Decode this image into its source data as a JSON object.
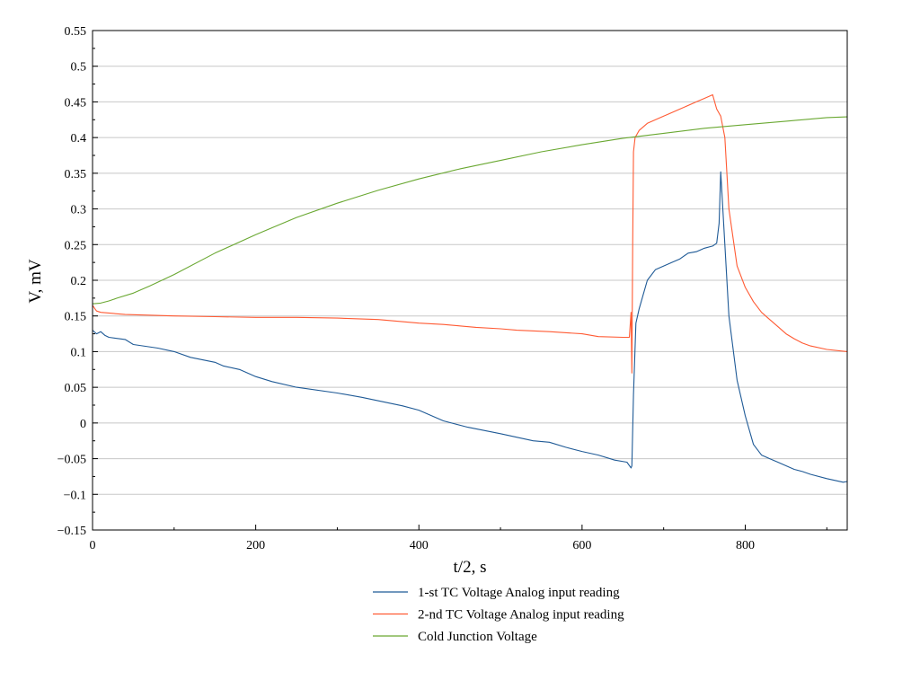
{
  "chart_data": {
    "type": "line",
    "title": "",
    "xlabel": "t/2, s",
    "ylabel": "V, mV",
    "xlim": [
      0,
      925
    ],
    "ylim": [
      -0.15,
      0.55
    ],
    "grid": true,
    "legend_position": "bottom-center",
    "x_ticks": [
      0,
      200,
      400,
      600,
      800
    ],
    "x_tick_labels": [
      "0",
      "200",
      "400",
      "600",
      "800"
    ],
    "y_ticks": [
      -0.15,
      -0.1,
      -0.05,
      0,
      0.05,
      0.1,
      0.15,
      0.2,
      0.25,
      0.3,
      0.35,
      0.4,
      0.45,
      0.5,
      0.55
    ],
    "y_tick_labels": [
      "−0.15",
      "−0.1",
      "−0.05",
      "0",
      "0.05",
      "0.1",
      "0.15",
      "0.2",
      "0.25",
      "0.3",
      "0.35",
      "0.4",
      "0.45",
      "0.5",
      "0.55"
    ],
    "series": [
      {
        "name": "1-st TC Voltage Analog input reading",
        "color": "#1f5a96",
        "x": [
          0,
          5,
          10,
          15,
          20,
          40,
          50,
          80,
          100,
          120,
          150,
          160,
          180,
          200,
          220,
          250,
          300,
          330,
          380,
          400,
          430,
          460,
          500,
          540,
          560,
          580,
          600,
          620,
          640,
          655,
          660,
          661,
          663,
          666,
          670,
          680,
          690,
          700,
          710,
          720,
          730,
          740,
          750,
          760,
          765,
          768,
          770,
          775,
          780,
          790,
          800,
          810,
          820,
          830,
          840,
          850,
          860,
          870,
          880,
          900,
          920,
          925
        ],
        "y": [
          0.13,
          0.125,
          0.128,
          0.123,
          0.12,
          0.117,
          0.11,
          0.105,
          0.1,
          0.092,
          0.085,
          0.08,
          0.075,
          0.065,
          0.058,
          0.05,
          0.042,
          0.036,
          0.024,
          0.018,
          0.003,
          -0.006,
          -0.015,
          -0.025,
          -0.027,
          -0.034,
          -0.04,
          -0.045,
          -0.052,
          -0.055,
          -0.063,
          -0.06,
          0.04,
          0.14,
          0.16,
          0.2,
          0.215,
          0.22,
          0.225,
          0.23,
          0.238,
          0.24,
          0.245,
          0.248,
          0.252,
          0.28,
          0.352,
          0.25,
          0.15,
          0.06,
          0.01,
          -0.03,
          -0.045,
          -0.05,
          -0.055,
          -0.06,
          -0.065,
          -0.068,
          -0.072,
          -0.078,
          -0.083,
          -0.082
        ]
      },
      {
        "name": "2-nd TC Voltage Analog input reading",
        "color": "#ff5a33",
        "x": [
          0,
          3,
          5,
          10,
          40,
          100,
          150,
          200,
          250,
          300,
          350,
          400,
          430,
          450,
          470,
          500,
          520,
          560,
          600,
          620,
          650,
          658,
          660,
          661,
          662,
          663,
          665,
          670,
          680,
          700,
          720,
          740,
          750,
          760,
          765,
          770,
          775,
          780,
          790,
          800,
          810,
          820,
          830,
          840,
          850,
          860,
          870,
          880,
          900,
          925
        ],
        "y": [
          0.165,
          0.16,
          0.157,
          0.155,
          0.152,
          0.15,
          0.149,
          0.148,
          0.148,
          0.147,
          0.145,
          0.14,
          0.138,
          0.136,
          0.134,
          0.132,
          0.13,
          0.128,
          0.125,
          0.121,
          0.12,
          0.12,
          0.155,
          0.07,
          0.25,
          0.38,
          0.4,
          0.41,
          0.42,
          0.43,
          0.44,
          0.45,
          0.455,
          0.46,
          0.44,
          0.43,
          0.4,
          0.3,
          0.22,
          0.19,
          0.17,
          0.155,
          0.145,
          0.135,
          0.125,
          0.118,
          0.112,
          0.108,
          0.103,
          0.1
        ]
      },
      {
        "name": "Cold Junction Voltage",
        "color": "#6aa832",
        "x": [
          0,
          10,
          20,
          30,
          50,
          70,
          100,
          150,
          200,
          250,
          300,
          350,
          400,
          450,
          500,
          550,
          600,
          650,
          700,
          750,
          800,
          850,
          900,
          925
        ],
        "y": [
          0.167,
          0.168,
          0.171,
          0.175,
          0.182,
          0.192,
          0.208,
          0.238,
          0.264,
          0.288,
          0.308,
          0.326,
          0.342,
          0.356,
          0.368,
          0.38,
          0.39,
          0.399,
          0.406,
          0.413,
          0.418,
          0.423,
          0.428,
          0.429
        ]
      }
    ]
  }
}
